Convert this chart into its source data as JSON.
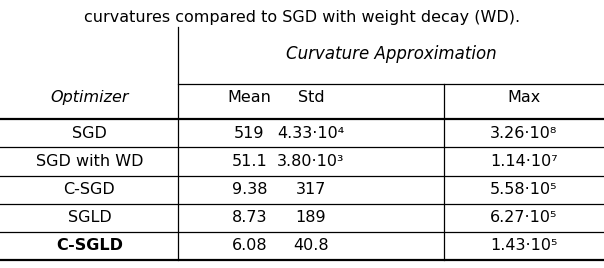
{
  "caption": "curvatures compared to SGD with weight decay (WD).",
  "header_main": "Curvature Approximation",
  "col_headers": [
    "Optimizer",
    "Mean",
    "Std",
    "Max"
  ],
  "rows": [
    {
      "optimizer": "SGD",
      "bold": false,
      "mean": "519",
      "std": "4.33·10⁴",
      "max": "3.26·10⁸"
    },
    {
      "optimizer": "SGD with WD",
      "bold": false,
      "mean": "51.1",
      "std": "3.80·10³",
      "max": "1.14·10⁷"
    },
    {
      "optimizer": "C-SGD",
      "bold": false,
      "mean": "9.38",
      "std": "317",
      "max": "5.58·10⁵"
    },
    {
      "optimizer": "SGLD",
      "bold": false,
      "mean": "8.73",
      "std": "189",
      "max": "6.27·10⁵"
    },
    {
      "optimizer": "C-SGLD",
      "bold": true,
      "mean": "6.08",
      "std": "40.8",
      "max": "1.43·10⁵"
    }
  ],
  "figsize": [
    6.04,
    2.68
  ],
  "dpi": 100,
  "font_size": 11.5,
  "caption_font_size": 11.5,
  "header_font_size": 12
}
